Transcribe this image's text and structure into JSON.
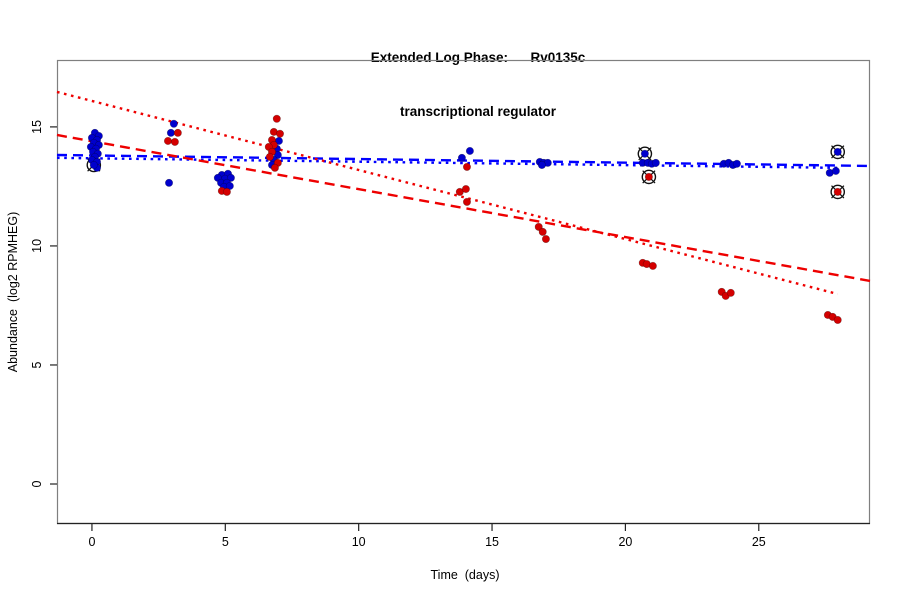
{
  "title": {
    "line1": "Extended Log Phase:      Rv0135c",
    "line2": "transcriptional regulator"
  },
  "chart_data": {
    "type": "scatter",
    "title": "Extended Log Phase: Rv0135c transcriptional regulator",
    "xlabel": "Time  (days)",
    "ylabel": "Abundance  (log2 RPMHEG)",
    "xlim": [
      -1.31,
      29.17
    ],
    "ylim": [
      -1.68,
      17.81
    ],
    "x_ticks": [
      0,
      5,
      10,
      15,
      20,
      25
    ],
    "y_ticks": [
      0,
      5,
      10,
      15
    ],
    "grid": false,
    "legend": "none",
    "colors": {
      "blue_point": "#0000CD",
      "red_point": "#D40000",
      "blue_line": "#0000FF",
      "red_line": "#EE0000",
      "box": "#7F7F7F",
      "axis": "#222222",
      "outlier_ring": "#111111"
    },
    "series": [
      {
        "name": "blue",
        "color": "#0000CD",
        "points": [
          [
            0.11,
            14.75
          ],
          [
            0.26,
            14.62
          ],
          [
            0.0,
            14.54
          ],
          [
            0.19,
            14.45
          ],
          [
            0.07,
            14.33
          ],
          [
            0.26,
            14.24
          ],
          [
            -0.04,
            14.16
          ],
          [
            0.15,
            14.08
          ],
          [
            0.04,
            13.95
          ],
          [
            0.22,
            13.87
          ],
          [
            0.11,
            13.74
          ],
          [
            0.0,
            13.61
          ],
          [
            0.19,
            13.53
          ],
          [
            0.19,
            13.28
          ],
          [
            3.07,
            15.13
          ],
          [
            2.96,
            14.75
          ],
          [
            2.89,
            12.65
          ],
          [
            4.87,
            12.98
          ],
          [
            5.1,
            13.03
          ],
          [
            4.72,
            12.86
          ],
          [
            4.99,
            12.82
          ],
          [
            5.21,
            12.86
          ],
          [
            4.84,
            12.65
          ],
          [
            5.06,
            12.65
          ],
          [
            4.95,
            12.48
          ],
          [
            5.17,
            12.52
          ],
          [
            7.01,
            14.41
          ],
          [
            6.93,
            14.08
          ],
          [
            6.97,
            13.82
          ],
          [
            6.82,
            13.61
          ],
          [
            6.75,
            13.4
          ],
          [
            14.17,
            13.99
          ],
          [
            13.87,
            13.7
          ],
          [
            16.79,
            13.53
          ],
          [
            16.94,
            13.49
          ],
          [
            17.09,
            13.49
          ],
          [
            16.87,
            13.4
          ],
          [
            20.65,
            13.49
          ],
          [
            20.84,
            13.49
          ],
          [
            20.99,
            13.45
          ],
          [
            21.14,
            13.49
          ],
          [
            23.69,
            13.45
          ],
          [
            23.87,
            13.49
          ],
          [
            24.03,
            13.4
          ],
          [
            24.18,
            13.45
          ],
          [
            27.66,
            13.07
          ],
          [
            27.89,
            13.15
          ]
        ],
        "circled_outliers": [
          [
            0.07,
            13.4
          ],
          [
            20.73,
            13.87
          ],
          [
            27.96,
            13.95
          ]
        ]
      },
      {
        "name": "red",
        "color": "#D40000",
        "points": [
          [
            3.22,
            14.75
          ],
          [
            2.85,
            14.41
          ],
          [
            3.11,
            14.37
          ],
          [
            4.87,
            12.31
          ],
          [
            5.06,
            12.27
          ],
          [
            6.93,
            15.34
          ],
          [
            6.82,
            14.79
          ],
          [
            7.05,
            14.71
          ],
          [
            6.75,
            14.45
          ],
          [
            6.82,
            14.24
          ],
          [
            6.63,
            14.16
          ],
          [
            6.75,
            13.95
          ],
          [
            6.67,
            13.74
          ],
          [
            6.97,
            13.49
          ],
          [
            6.86,
            13.28
          ],
          [
            14.06,
            13.32
          ],
          [
            13.79,
            12.27
          ],
          [
            14.02,
            12.39
          ],
          [
            14.06,
            11.85
          ],
          [
            16.75,
            10.8
          ],
          [
            16.9,
            10.59
          ],
          [
            17.02,
            10.29
          ],
          [
            20.65,
            9.29
          ],
          [
            20.8,
            9.24
          ],
          [
            21.03,
            9.16
          ],
          [
            23.61,
            8.07
          ],
          [
            23.76,
            7.9
          ],
          [
            23.95,
            8.03
          ],
          [
            27.59,
            7.1
          ],
          [
            27.77,
            7.02
          ],
          [
            27.96,
            6.89
          ]
        ],
        "circled_outliers": [
          [
            20.88,
            12.9
          ],
          [
            27.96,
            12.27
          ]
        ]
      }
    ],
    "trend_lines": [
      {
        "series": "blue",
        "style": "dashed",
        "color": "#0000FF",
        "x1": -1.31,
        "y1": 13.82,
        "x2": 29.17,
        "y2": 13.36
      },
      {
        "series": "blue",
        "style": "dotted",
        "color": "#0000FF",
        "x1": -1.31,
        "y1": 13.7,
        "x2": 27.96,
        "y2": 13.28
      },
      {
        "series": "red",
        "style": "dashed",
        "color": "#EE0000",
        "x1": -1.31,
        "y1": 14.66,
        "x2": 29.17,
        "y2": 8.53
      },
      {
        "series": "red",
        "style": "dotted",
        "color": "#EE0000",
        "x1": -1.31,
        "y1": 16.47,
        "x2": 27.96,
        "y2": 7.98
      }
    ]
  }
}
